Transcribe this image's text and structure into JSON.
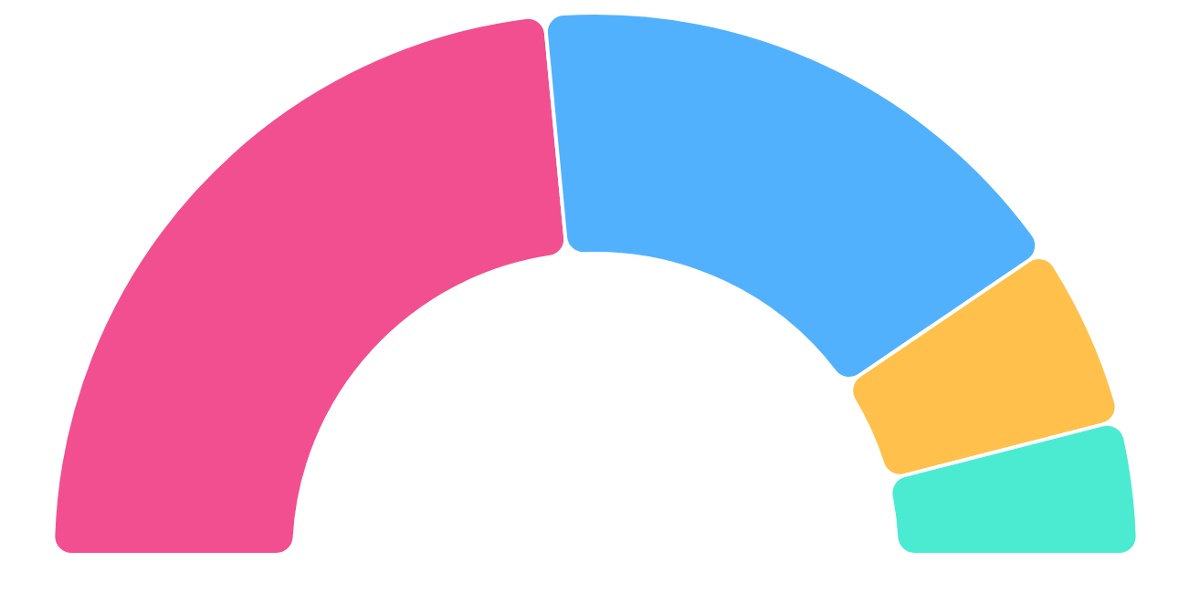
{
  "chart_data": {
    "type": "donut",
    "categories": [
      null,
      null,
      null,
      null
    ],
    "values": [
      47,
      34,
      11,
      8
    ],
    "colors": [
      "#f24f90",
      "#52b1fd",
      "#ffc14b",
      "#4aebd1"
    ]
  }
}
